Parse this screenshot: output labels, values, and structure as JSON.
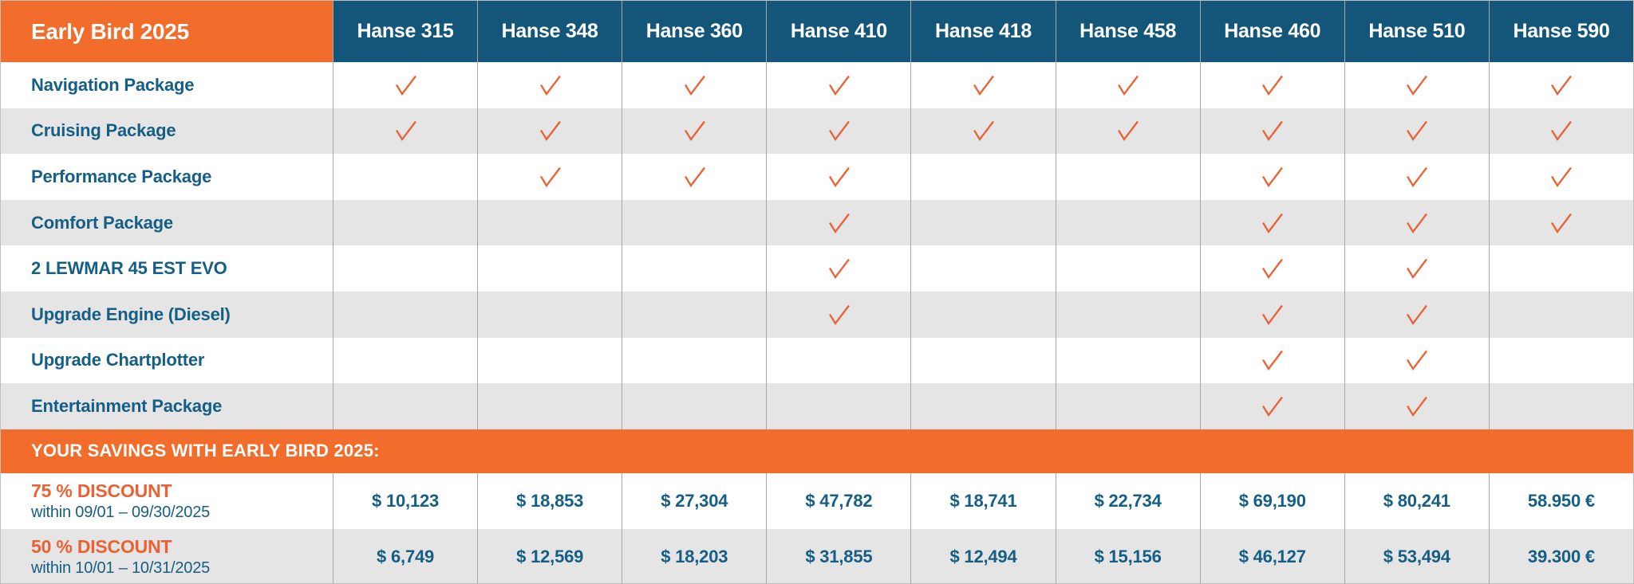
{
  "table": {
    "title": "Early Bird 2025",
    "models": [
      "Hanse 315",
      "Hanse 348",
      "Hanse 360",
      "Hanse 410",
      "Hanse 418",
      "Hanse 458",
      "Hanse 460",
      "Hanse 510",
      "Hanse 590"
    ],
    "features": [
      {
        "label": "Navigation Package",
        "checks": [
          1,
          1,
          1,
          1,
          1,
          1,
          1,
          1,
          1
        ]
      },
      {
        "label": "Cruising Package",
        "checks": [
          1,
          1,
          1,
          1,
          1,
          1,
          1,
          1,
          1
        ]
      },
      {
        "label": "Performance Package",
        "checks": [
          0,
          1,
          1,
          1,
          0,
          0,
          1,
          1,
          1
        ]
      },
      {
        "label": "Comfort Package",
        "checks": [
          0,
          0,
          0,
          1,
          0,
          0,
          1,
          1,
          1
        ]
      },
      {
        "label": "2 LEWMAR 45 EST EVO",
        "checks": [
          0,
          0,
          0,
          1,
          0,
          0,
          1,
          1,
          0
        ]
      },
      {
        "label": "Upgrade Engine (Diesel)",
        "checks": [
          0,
          0,
          0,
          1,
          0,
          0,
          1,
          1,
          0
        ]
      },
      {
        "label": "Upgrade Chartplotter",
        "checks": [
          0,
          0,
          0,
          0,
          0,
          0,
          1,
          1,
          0
        ]
      },
      {
        "label": "Entertainment Package",
        "checks": [
          0,
          0,
          0,
          0,
          0,
          0,
          1,
          1,
          0
        ]
      }
    ],
    "savings_banner": "YOUR SAVINGS WITH EARLY BIRD 2025:",
    "discounts": [
      {
        "title": "75 % DISCOUNT",
        "period": "within 09/01 – 09/30/2025",
        "values": [
          "$ 10,123",
          "$ 18,853",
          "$ 27,304",
          "$ 47,782",
          "$ 18,741",
          "$ 22,734",
          "$ 69,190",
          "$ 80,241",
          "58.950 €"
        ]
      },
      {
        "title": "50 % DISCOUNT",
        "period": "within 10/01 – 10/31/2025",
        "values": [
          "$ 6,749",
          "$ 12,569",
          "$ 18,203",
          "$ 31,855",
          "$ 12,494",
          "$ 15,156",
          "$ 46,127",
          "$ 53,494",
          "39.300 €"
        ]
      }
    ]
  },
  "colors": {
    "band_orange": "#F26C2B",
    "check_orange": "#EC6133",
    "header_blue": "#14567A",
    "text_blue": "#155E86",
    "row_gray": "#E5E5E5",
    "grid_gray": "#A6A6A6"
  }
}
